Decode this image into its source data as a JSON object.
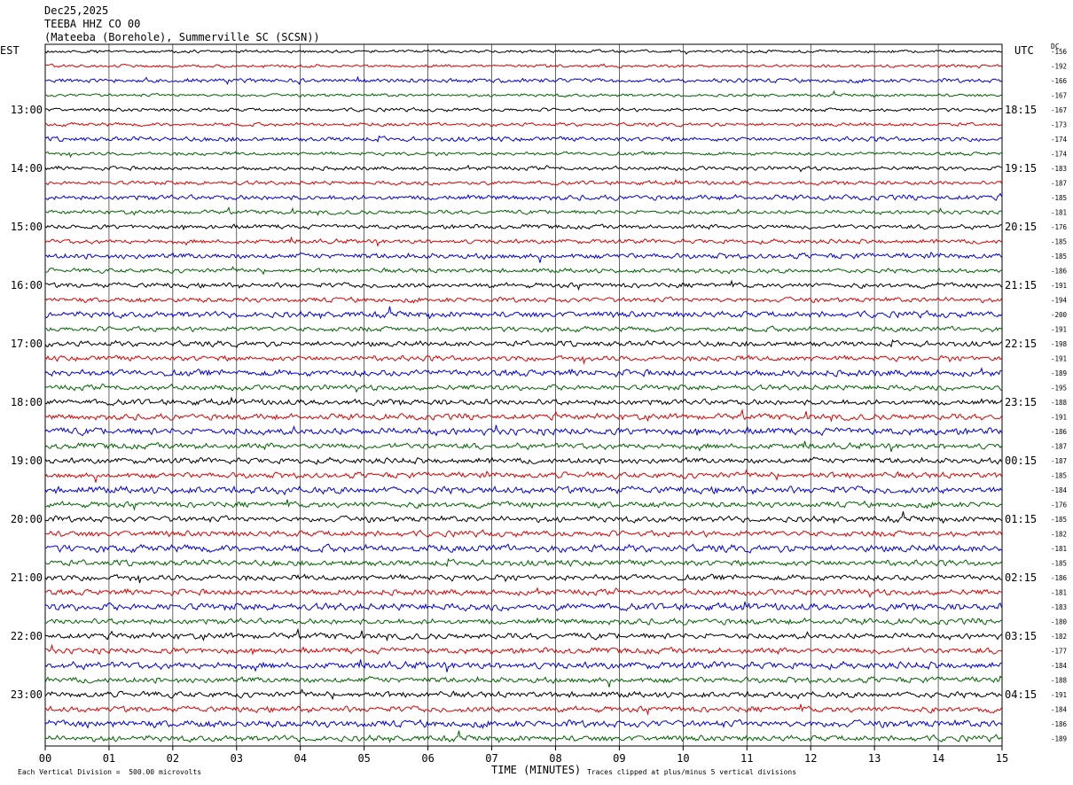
{
  "header": {
    "date": "Dec25,2025",
    "station": "TEEBA HHZ CO 00",
    "location": "(Mateeba (Borehole), Summerville SC (SCSN))"
  },
  "labels": {
    "left_zone": "EST",
    "right_zone": "UTC",
    "dc_header": "DC",
    "x_axis_title": "TIME (MINUTES)",
    "scale_note": "Each Vertical Division =  500.00 microvolts",
    "clip_note": "Traces clipped at plus/minus 5 vertical divisions"
  },
  "chart_data": {
    "type": "line",
    "subtype": "helicorder",
    "x_ticks": [
      "00",
      "01",
      "02",
      "03",
      "04",
      "05",
      "06",
      "07",
      "08",
      "09",
      "10",
      "11",
      "12",
      "13",
      "14",
      "15"
    ],
    "xlim": [
      0,
      15
    ],
    "trace_colors": [
      "#000000",
      "#e00000",
      "#0000e0",
      "#006400"
    ],
    "left_time_labels": [
      "13:00",
      "14:00",
      "15:00",
      "16:00",
      "17:00",
      "18:00",
      "19:00",
      "20:00",
      "21:00",
      "22:00",
      "23:00"
    ],
    "right_time_labels": [
      "18:15",
      "19:15",
      "20:15",
      "21:15",
      "22:15",
      "23:15",
      "00:15",
      "01:15",
      "02:15",
      "03:15",
      "04:15"
    ],
    "dc_offsets": [
      -156,
      -192,
      -166,
      -167,
      -167,
      -173,
      -174,
      -174,
      -183,
      -187,
      -185,
      -181,
      -176,
      -185,
      -185,
      -186,
      -191,
      -194,
      -200,
      -191,
      -198,
      -191,
      -189,
      -195,
      -188,
      -191,
      -186,
      -187,
      -187,
      -185,
      -184,
      -176,
      -185,
      -182,
      -181,
      -185,
      -186,
      -181,
      -183,
      -180,
      -182,
      -177,
      -184,
      -188,
      -191,
      -184,
      -186,
      -189
    ],
    "trace_count": 48,
    "first_labeled_trace": 4,
    "traces_per_hour": 4,
    "grid": true
  }
}
